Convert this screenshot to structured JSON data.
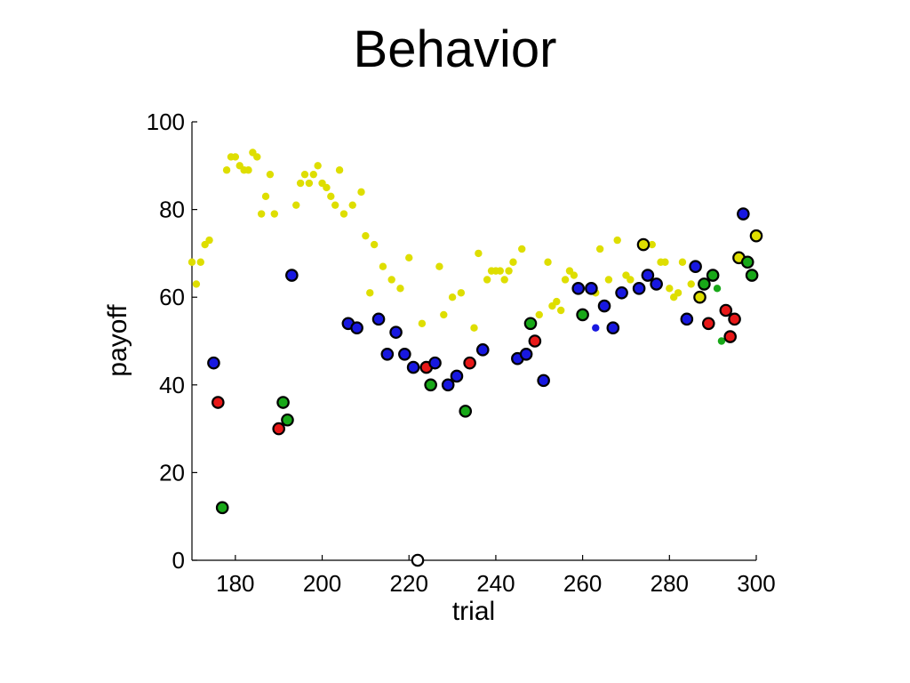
{
  "title": "Behavior",
  "chart_data": {
    "type": "scatter",
    "title": "Behavior",
    "xlabel": "trial",
    "ylabel": "payoff",
    "xlim": [
      170,
      300
    ],
    "ylim": [
      0,
      100
    ],
    "xticks": [
      180,
      200,
      220,
      240,
      260,
      280,
      300
    ],
    "yticks": [
      0,
      20,
      40,
      60,
      80,
      100
    ],
    "grid": false,
    "colors": {
      "yellow": "#dede00",
      "blue": "#1818e0",
      "red": "#e81818",
      "green": "#18a818",
      "white": "#ffffff",
      "outline": "#000000"
    },
    "small_points": [
      {
        "x": 170,
        "y": 68,
        "c": "yellow"
      },
      {
        "x": 171,
        "y": 63,
        "c": "yellow"
      },
      {
        "x": 172,
        "y": 68,
        "c": "yellow"
      },
      {
        "x": 173,
        "y": 72,
        "c": "yellow"
      },
      {
        "x": 174,
        "y": 73,
        "c": "yellow"
      },
      {
        "x": 178,
        "y": 89,
        "c": "yellow"
      },
      {
        "x": 179,
        "y": 92,
        "c": "yellow"
      },
      {
        "x": 180,
        "y": 92,
        "c": "yellow"
      },
      {
        "x": 181,
        "y": 90,
        "c": "yellow"
      },
      {
        "x": 182,
        "y": 89,
        "c": "yellow"
      },
      {
        "x": 183,
        "y": 89,
        "c": "yellow"
      },
      {
        "x": 184,
        "y": 93,
        "c": "yellow"
      },
      {
        "x": 185,
        "y": 92,
        "c": "yellow"
      },
      {
        "x": 186,
        "y": 79,
        "c": "yellow"
      },
      {
        "x": 187,
        "y": 83,
        "c": "yellow"
      },
      {
        "x": 188,
        "y": 88,
        "c": "yellow"
      },
      {
        "x": 189,
        "y": 79,
        "c": "yellow"
      },
      {
        "x": 194,
        "y": 81,
        "c": "yellow"
      },
      {
        "x": 195,
        "y": 86,
        "c": "yellow"
      },
      {
        "x": 196,
        "y": 88,
        "c": "yellow"
      },
      {
        "x": 197,
        "y": 86,
        "c": "yellow"
      },
      {
        "x": 198,
        "y": 88,
        "c": "yellow"
      },
      {
        "x": 199,
        "y": 90,
        "c": "yellow"
      },
      {
        "x": 200,
        "y": 86,
        "c": "yellow"
      },
      {
        "x": 201,
        "y": 85,
        "c": "yellow"
      },
      {
        "x": 202,
        "y": 83,
        "c": "yellow"
      },
      {
        "x": 203,
        "y": 81,
        "c": "yellow"
      },
      {
        "x": 204,
        "y": 89,
        "c": "yellow"
      },
      {
        "x": 205,
        "y": 79,
        "c": "yellow"
      },
      {
        "x": 207,
        "y": 81,
        "c": "yellow"
      },
      {
        "x": 209,
        "y": 84,
        "c": "yellow"
      },
      {
        "x": 210,
        "y": 74,
        "c": "yellow"
      },
      {
        "x": 211,
        "y": 61,
        "c": "yellow"
      },
      {
        "x": 212,
        "y": 72,
        "c": "yellow"
      },
      {
        "x": 214,
        "y": 67,
        "c": "yellow"
      },
      {
        "x": 216,
        "y": 64,
        "c": "yellow"
      },
      {
        "x": 218,
        "y": 62,
        "c": "yellow"
      },
      {
        "x": 220,
        "y": 69,
        "c": "yellow"
      },
      {
        "x": 223,
        "y": 54,
        "c": "yellow"
      },
      {
        "x": 227,
        "y": 67,
        "c": "yellow"
      },
      {
        "x": 228,
        "y": 56,
        "c": "yellow"
      },
      {
        "x": 230,
        "y": 60,
        "c": "yellow"
      },
      {
        "x": 232,
        "y": 61,
        "c": "yellow"
      },
      {
        "x": 235,
        "y": 53,
        "c": "yellow"
      },
      {
        "x": 236,
        "y": 70,
        "c": "yellow"
      },
      {
        "x": 238,
        "y": 64,
        "c": "yellow"
      },
      {
        "x": 239,
        "y": 66,
        "c": "yellow"
      },
      {
        "x": 240,
        "y": 66,
        "c": "yellow"
      },
      {
        "x": 241,
        "y": 66,
        "c": "yellow"
      },
      {
        "x": 242,
        "y": 64,
        "c": "yellow"
      },
      {
        "x": 243,
        "y": 66,
        "c": "yellow"
      },
      {
        "x": 244,
        "y": 68,
        "c": "yellow"
      },
      {
        "x": 246,
        "y": 71,
        "c": "yellow"
      },
      {
        "x": 250,
        "y": 56,
        "c": "yellow"
      },
      {
        "x": 252,
        "y": 68,
        "c": "yellow"
      },
      {
        "x": 253,
        "y": 58,
        "c": "yellow"
      },
      {
        "x": 254,
        "y": 59,
        "c": "yellow"
      },
      {
        "x": 255,
        "y": 57,
        "c": "yellow"
      },
      {
        "x": 256,
        "y": 64,
        "c": "yellow"
      },
      {
        "x": 257,
        "y": 66,
        "c": "yellow"
      },
      {
        "x": 258,
        "y": 65,
        "c": "yellow"
      },
      {
        "x": 263,
        "y": 61,
        "c": "yellow"
      },
      {
        "x": 264,
        "y": 71,
        "c": "yellow"
      },
      {
        "x": 266,
        "y": 64,
        "c": "yellow"
      },
      {
        "x": 268,
        "y": 73,
        "c": "yellow"
      },
      {
        "x": 270,
        "y": 65,
        "c": "yellow"
      },
      {
        "x": 271,
        "y": 64,
        "c": "yellow"
      },
      {
        "x": 276,
        "y": 72,
        "c": "yellow"
      },
      {
        "x": 278,
        "y": 68,
        "c": "yellow"
      },
      {
        "x": 279,
        "y": 68,
        "c": "yellow"
      },
      {
        "x": 280,
        "y": 62,
        "c": "yellow"
      },
      {
        "x": 281,
        "y": 60,
        "c": "yellow"
      },
      {
        "x": 282,
        "y": 61,
        "c": "yellow"
      },
      {
        "x": 283,
        "y": 68,
        "c": "yellow"
      },
      {
        "x": 285,
        "y": 63,
        "c": "yellow"
      },
      {
        "x": 263,
        "y": 53,
        "c": "blue"
      },
      {
        "x": 291,
        "y": 62,
        "c": "green"
      },
      {
        "x": 292,
        "y": 50,
        "c": "green"
      }
    ],
    "large_points": [
      {
        "x": 175,
        "y": 45,
        "c": "blue"
      },
      {
        "x": 176,
        "y": 36,
        "c": "red"
      },
      {
        "x": 177,
        "y": 12,
        "c": "green"
      },
      {
        "x": 190,
        "y": 30,
        "c": "red"
      },
      {
        "x": 191,
        "y": 36,
        "c": "green"
      },
      {
        "x": 192,
        "y": 32,
        "c": "green"
      },
      {
        "x": 193,
        "y": 65,
        "c": "blue"
      },
      {
        "x": 206,
        "y": 54,
        "c": "blue"
      },
      {
        "x": 208,
        "y": 53,
        "c": "blue"
      },
      {
        "x": 213,
        "y": 55,
        "c": "blue"
      },
      {
        "x": 215,
        "y": 47,
        "c": "blue"
      },
      {
        "x": 217,
        "y": 52,
        "c": "blue"
      },
      {
        "x": 219,
        "y": 47,
        "c": "blue"
      },
      {
        "x": 221,
        "y": 44,
        "c": "blue"
      },
      {
        "x": 222,
        "y": 0,
        "c": "white"
      },
      {
        "x": 224,
        "y": 44,
        "c": "red"
      },
      {
        "x": 225,
        "y": 40,
        "c": "green"
      },
      {
        "x": 226,
        "y": 45,
        "c": "blue"
      },
      {
        "x": 229,
        "y": 40,
        "c": "blue"
      },
      {
        "x": 231,
        "y": 42,
        "c": "blue"
      },
      {
        "x": 233,
        "y": 34,
        "c": "green"
      },
      {
        "x": 234,
        "y": 45,
        "c": "red"
      },
      {
        "x": 237,
        "y": 48,
        "c": "blue"
      },
      {
        "x": 245,
        "y": 46,
        "c": "blue"
      },
      {
        "x": 247,
        "y": 47,
        "c": "blue"
      },
      {
        "x": 248,
        "y": 54,
        "c": "green"
      },
      {
        "x": 249,
        "y": 50,
        "c": "red"
      },
      {
        "x": 251,
        "y": 41,
        "c": "blue"
      },
      {
        "x": 259,
        "y": 62,
        "c": "blue"
      },
      {
        "x": 260,
        "y": 56,
        "c": "green"
      },
      {
        "x": 262,
        "y": 62,
        "c": "blue"
      },
      {
        "x": 265,
        "y": 58,
        "c": "blue"
      },
      {
        "x": 267,
        "y": 53,
        "c": "blue"
      },
      {
        "x": 269,
        "y": 61,
        "c": "blue"
      },
      {
        "x": 273,
        "y": 62,
        "c": "blue"
      },
      {
        "x": 274,
        "y": 72,
        "c": "yellow"
      },
      {
        "x": 275,
        "y": 65,
        "c": "blue"
      },
      {
        "x": 277,
        "y": 63,
        "c": "blue"
      },
      {
        "x": 284,
        "y": 55,
        "c": "blue"
      },
      {
        "x": 286,
        "y": 67,
        "c": "blue"
      },
      {
        "x": 287,
        "y": 60,
        "c": "yellow"
      },
      {
        "x": 288,
        "y": 63,
        "c": "green"
      },
      {
        "x": 289,
        "y": 54,
        "c": "red"
      },
      {
        "x": 290,
        "y": 65,
        "c": "green"
      },
      {
        "x": 293,
        "y": 57,
        "c": "red"
      },
      {
        "x": 294,
        "y": 51,
        "c": "red"
      },
      {
        "x": 295,
        "y": 55,
        "c": "red"
      },
      {
        "x": 296,
        "y": 69,
        "c": "yellow"
      },
      {
        "x": 297,
        "y": 79,
        "c": "blue"
      },
      {
        "x": 298,
        "y": 68,
        "c": "green"
      },
      {
        "x": 299,
        "y": 65,
        "c": "green"
      },
      {
        "x": 300,
        "y": 74,
        "c": "yellow"
      }
    ]
  }
}
